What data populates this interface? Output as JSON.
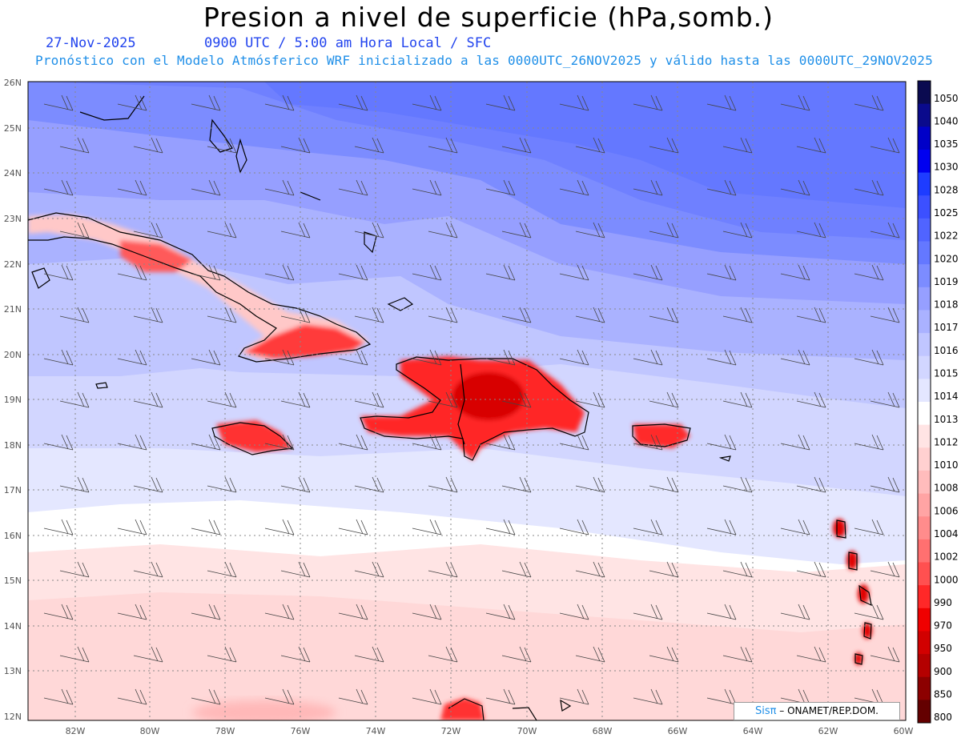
{
  "title": "Presion a nivel de superficie (hPa,somb.)",
  "date": "27-Nov-2025",
  "time_line": "0900 UTC / 5:00 am Hora Local / SFC",
  "forecast_line": "Pronóstico con el Modelo Atmósferico WRF inicializado a las 0000UTC_26NOV2025 y válido hasta las  0000UTC_29NOV2025",
  "credit": {
    "logo": "Sisπ",
    "text": "– ONAMET/REP.DOM."
  },
  "map": {
    "lat_labels": [
      "26N",
      "25N",
      "24N",
      "23N",
      "22N",
      "21N",
      "20N",
      "19N",
      "18N",
      "17N",
      "16N",
      "15N",
      "14N",
      "13N",
      "12N"
    ],
    "lon_labels": [
      "82W",
      "80W",
      "78W",
      "76W",
      "74W",
      "72W",
      "70W",
      "68W",
      "66W",
      "64W",
      "62W",
      "60W"
    ],
    "lat_range": [
      12,
      26
    ],
    "lon_range": [
      -83.2,
      -60
    ]
  },
  "colorbar": {
    "labels": [
      "1050",
      "1040",
      "1035",
      "1030",
      "1028",
      "1025",
      "1022",
      "1020",
      "1019",
      "1018",
      "1017",
      "1016",
      "1015",
      "1014",
      "1013",
      "1012",
      "1010",
      "1008",
      "1006",
      "1004",
      "1002",
      "1000",
      "990",
      "970",
      "950",
      "900",
      "850",
      "800"
    ],
    "colors": [
      "#0a0a50",
      "#0a0a8c",
      "#0000c8",
      "#0000f0",
      "#1e3cff",
      "#3c50ff",
      "#5064ff",
      "#6478ff",
      "#7c8cff",
      "#969fff",
      "#aab2ff",
      "#c0c6ff",
      "#d2d6ff",
      "#e4e7ff",
      "#ffffff",
      "#ffe4e4",
      "#ffd0d0",
      "#ffbcbc",
      "#ffa4a4",
      "#ff8c8c",
      "#ff7070",
      "#ff5050",
      "#ff2828",
      "#f00000",
      "#d20000",
      "#b40000",
      "#8c0000",
      "#640000"
    ]
  }
}
